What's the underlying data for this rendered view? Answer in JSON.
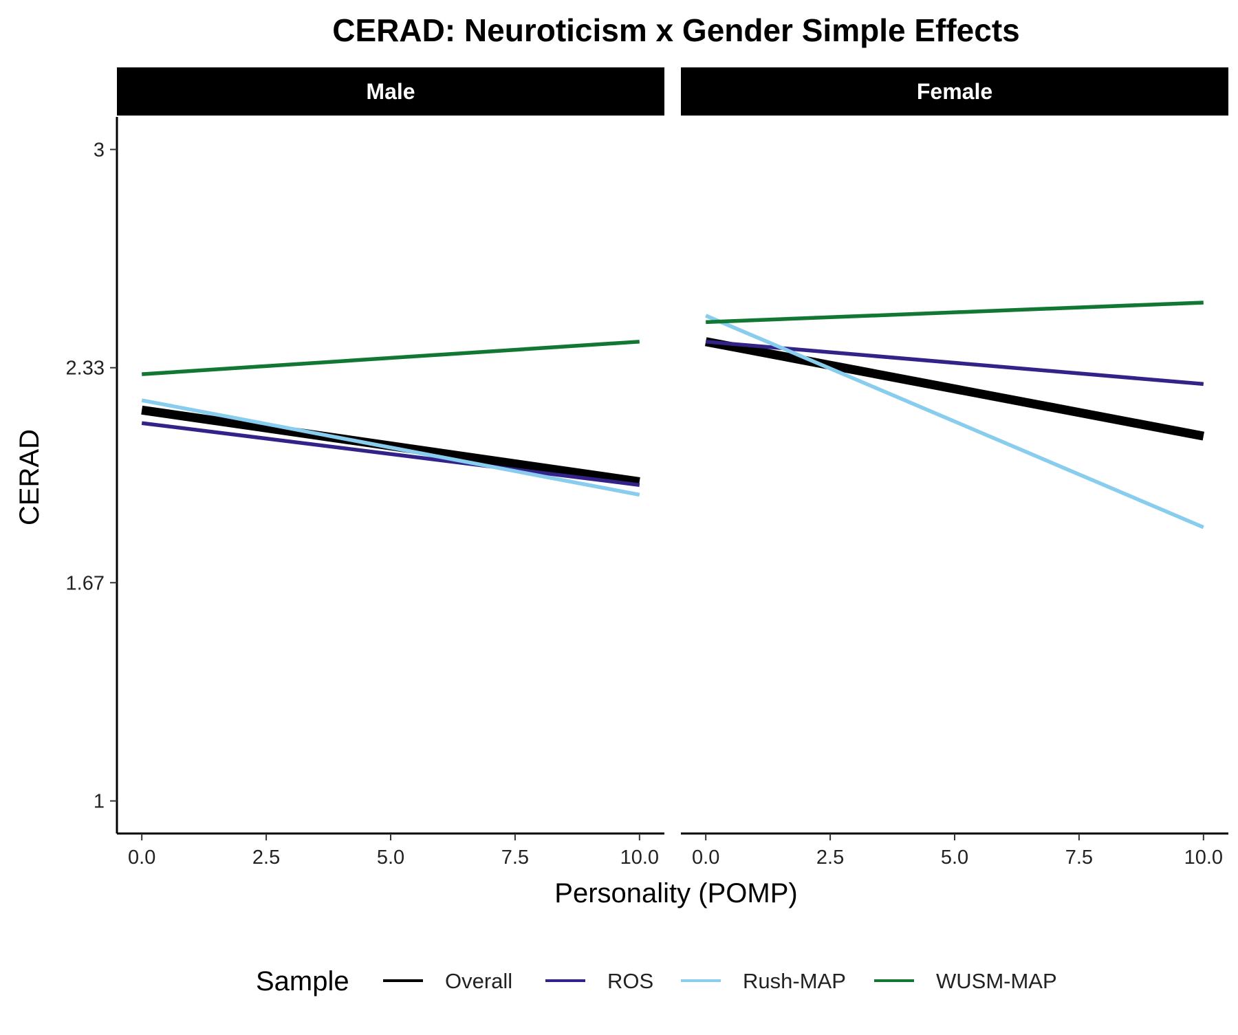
{
  "chart_data": {
    "type": "line",
    "title": "CERAD: Neuroticism x Gender Simple Effects",
    "xlabel": "Personality (POMP)",
    "ylabel": "CERAD",
    "xlim": [
      -0.5,
      10.5
    ],
    "ylim": [
      0.9,
      3.1
    ],
    "x_ticks": [
      0,
      2.5,
      5,
      7.5,
      10
    ],
    "x_tick_labels": [
      "0.0",
      "2.5",
      "5.0",
      "7.5",
      "10.0"
    ],
    "y_ticks": [
      1,
      1.67,
      2.33,
      3
    ],
    "y_tick_labels": [
      "1",
      "1.67",
      "2.33",
      "3"
    ],
    "grid": false,
    "legend": {
      "title": "Sample",
      "placement": "bottom"
    },
    "facets": [
      {
        "label": "Male",
        "series": [
          {
            "name": "Overall",
            "x": [
              0,
              10
            ],
            "y": [
              2.2,
              1.98
            ]
          },
          {
            "name": "ROS",
            "x": [
              0,
              10
            ],
            "y": [
              2.16,
              1.97
            ]
          },
          {
            "name": "Rush-MAP",
            "x": [
              0,
              10
            ],
            "y": [
              2.23,
              1.94
            ]
          },
          {
            "name": "WUSM-MAP",
            "x": [
              0,
              10
            ],
            "y": [
              2.31,
              2.41
            ]
          }
        ]
      },
      {
        "label": "Female",
        "series": [
          {
            "name": "Overall",
            "x": [
              0,
              10
            ],
            "y": [
              2.41,
              2.12
            ]
          },
          {
            "name": "ROS",
            "x": [
              0,
              10
            ],
            "y": [
              2.41,
              2.28
            ]
          },
          {
            "name": "Rush-MAP",
            "x": [
              0,
              10
            ],
            "y": [
              2.49,
              1.84
            ]
          },
          {
            "name": "WUSM-MAP",
            "x": [
              0,
              10
            ],
            "y": [
              2.47,
              2.53
            ]
          }
        ]
      }
    ],
    "series_styles": [
      {
        "name": "Overall",
        "color": "#000000",
        "weight": "thick"
      },
      {
        "name": "ROS",
        "color": "#332288",
        "weight": "normal"
      },
      {
        "name": "Rush-MAP",
        "color": "#88CCEE",
        "weight": "normal"
      },
      {
        "name": "WUSM-MAP",
        "color": "#117733",
        "weight": "normal"
      }
    ]
  }
}
